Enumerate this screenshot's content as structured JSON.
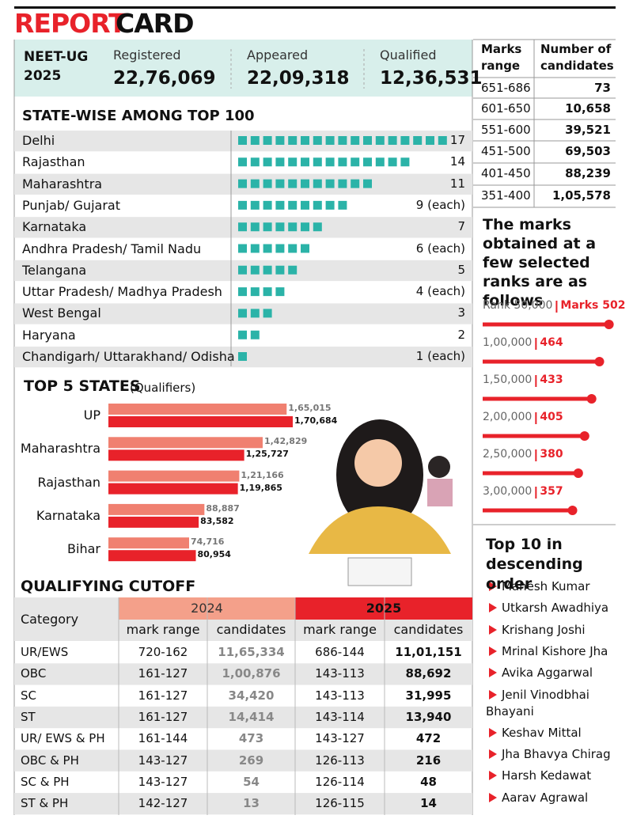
{
  "header": {
    "title": [
      "REPORT",
      "CARD"
    ]
  },
  "summary": {
    "label": [
      "NEET-UG",
      "2025"
    ],
    "stats": [
      {
        "name": "Registered",
        "value": "22,76,069"
      },
      {
        "name": "Appeared",
        "value": "22,09,318"
      },
      {
        "name": "Qualified",
        "value": "12,36,531"
      }
    ]
  },
  "marks_table": {
    "headers": [
      "Marks range",
      "Number of candidates"
    ],
    "rows": [
      [
        "651-686",
        "73"
      ],
      [
        "601-650",
        "10,658"
      ],
      [
        "551-600",
        "39,521"
      ],
      [
        "451-500",
        "69,503"
      ],
      [
        "401-450",
        "88,239"
      ],
      [
        "351-400",
        "1,05,578"
      ]
    ]
  },
  "chart_data": [
    {
      "type": "squares",
      "title": "STATE-WISE AMONG TOP 100",
      "categories": [
        "Delhi",
        "Rajasthan",
        "Maharashtra",
        "Punjab/ Gujarat",
        "Karnataka",
        "Andhra Pradesh/ Tamil Nadu",
        "Telangana",
        "Uttar Pradesh/ Madhya Pradesh",
        "West Bengal",
        "Haryana",
        "Chandigarh/ Uttarakhand/ Odisha"
      ],
      "values": [
        17,
        14,
        11,
        9,
        7,
        6,
        5,
        4,
        3,
        2,
        1
      ],
      "value_labels": [
        "17",
        "14",
        "11",
        "9 (each)",
        "7",
        "6 (each)",
        "5",
        "4 (each)",
        "3",
        "2",
        "1 (each)"
      ],
      "color": "#2bb3a8"
    },
    {
      "type": "hbar",
      "title": "TOP 5 STATES",
      "subtitle": "(Qualifiers)",
      "categories": [
        "UP",
        "Maharashtra",
        "Rajasthan",
        "Karnataka",
        "Bihar"
      ],
      "series": [
        {
          "color": "#f08070",
          "values": [
            165015,
            142829,
            121166,
            88887,
            74716
          ],
          "value_labels": [
            "1,65,015",
            "1,42,829",
            "1,21,166",
            "88,887",
            "74,716"
          ]
        },
        {
          "color": "#e8222a",
          "values": [
            170684,
            125727,
            119865,
            83582,
            80954
          ],
          "value_labels": [
            "1,70,684",
            "1,25,727",
            "1,19,865",
            "83,582",
            "80,954"
          ]
        }
      ]
    },
    {
      "type": "lollipop",
      "title": "The marks obtained at a few selected ranks are as follows",
      "categories": [
        "Rank 50,000",
        "1,00,000",
        "1,50,000",
        "2,00,000",
        "2,50,000",
        "3,00,000"
      ],
      "values": [
        502,
        464,
        433,
        405,
        380,
        357
      ],
      "value_labels": [
        "Marks 502",
        "464",
        "433",
        "405",
        "380",
        "357"
      ],
      "color": "#e8222a"
    }
  ],
  "cutoff_table": {
    "title": "QUALIFYING CUTOFF",
    "corner": "Category",
    "groups": [
      "2024",
      "2025"
    ],
    "subheaders": [
      "mark range",
      "candidates",
      "mark range",
      "candidates"
    ],
    "rows": [
      [
        "UR/EWS",
        "720-162",
        "11,65,334",
        "686-144",
        "11,01,151"
      ],
      [
        "OBC",
        "161-127",
        "1,00,876",
        "143-113",
        "88,692"
      ],
      [
        "SC",
        "161-127",
        "34,420",
        "143-113",
        "31,995"
      ],
      [
        "ST",
        "161-127",
        "14,414",
        "143-114",
        "13,940"
      ],
      [
        "UR/ EWS & PH",
        "161-144",
        "473",
        "143-127",
        "472"
      ],
      [
        "OBC & PH",
        "143-127",
        "269",
        "126-113",
        "216"
      ],
      [
        "SC & PH",
        "143-127",
        "54",
        "126-114",
        "48"
      ],
      [
        "ST & PH",
        "142-127",
        "13",
        "126-115",
        "14"
      ]
    ]
  },
  "top10": {
    "title": "Top 10 in descending order",
    "names": [
      "Mahesh Kumar",
      "Utkarsh Awadhiya",
      "Krishang Joshi",
      "Mrinal Kishore Jha",
      "Avika Aggarwal",
      "Jenil Vinodbhai Bhayani",
      "Keshav Mittal",
      "Jha Bhavya Chirag",
      "Harsh Kedawat",
      "Aarav Agrawal"
    ]
  }
}
